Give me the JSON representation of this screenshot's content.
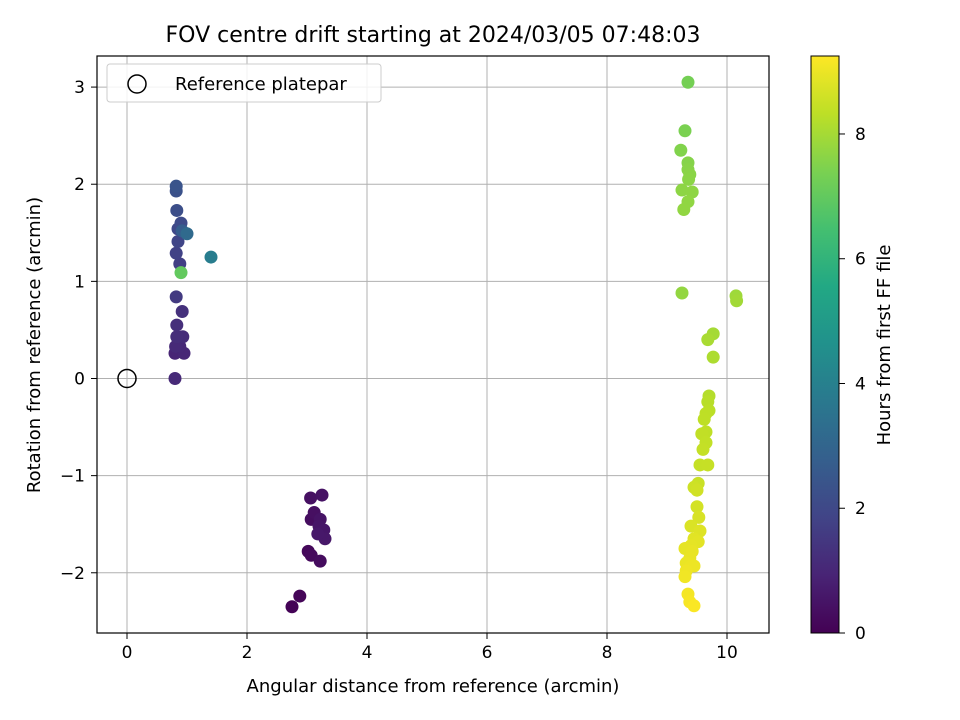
{
  "chart_data": {
    "type": "scatter",
    "title": "FOV centre drift starting at 2024/03/05 07:48:03",
    "xlabel": "Angular distance from reference (arcmin)",
    "ylabel": "Rotation from reference (arcmin)",
    "xlim": [
      -0.5,
      10.7
    ],
    "ylim": [
      -2.62,
      3.32
    ],
    "xticks": [
      0,
      2,
      4,
      6,
      8,
      10
    ],
    "yticks": [
      -2,
      -1,
      0,
      1,
      2,
      3
    ],
    "x_tick_labels": [
      "0",
      "2",
      "4",
      "6",
      "8",
      "10"
    ],
    "y_tick_labels": [
      "−2",
      "−1",
      "0",
      "1",
      "2",
      "3"
    ],
    "grid": true,
    "legend": {
      "position": "top-left",
      "entries": [
        "Reference platepar"
      ]
    },
    "reference_point": {
      "x": 0,
      "y": 0,
      "label": "Reference platepar"
    },
    "colorbar": {
      "label": "Hours from first FF file",
      "range": [
        0,
        9.25
      ],
      "ticks": [
        0,
        2,
        4,
        6,
        8
      ],
      "tick_labels": [
        "0",
        "2",
        "4",
        "6",
        "8"
      ],
      "colormap": "viridis"
    },
    "points": [
      {
        "x": 2.75,
        "y": -2.35,
        "h": 0.05
      },
      {
        "x": 2.88,
        "y": -2.24,
        "h": 0.12
      },
      {
        "x": 3.02,
        "y": -1.78,
        "h": 0.18
      },
      {
        "x": 3.07,
        "y": -1.82,
        "h": 0.22
      },
      {
        "x": 3.22,
        "y": -1.88,
        "h": 0.28
      },
      {
        "x": 3.07,
        "y": -1.45,
        "h": 0.32
      },
      {
        "x": 3.12,
        "y": -1.38,
        "h": 0.36
      },
      {
        "x": 3.06,
        "y": -1.23,
        "h": 0.4
      },
      {
        "x": 3.25,
        "y": -1.2,
        "h": 0.44
      },
      {
        "x": 3.22,
        "y": -1.45,
        "h": 0.48
      },
      {
        "x": 3.2,
        "y": -1.52,
        "h": 0.52
      },
      {
        "x": 3.28,
        "y": -1.56,
        "h": 0.56
      },
      {
        "x": 3.3,
        "y": -1.65,
        "h": 0.6
      },
      {
        "x": 3.18,
        "y": -1.6,
        "h": 0.62
      },
      {
        "x": 0.8,
        "y": 0.26,
        "h": 0.95
      },
      {
        "x": 0.95,
        "y": 0.26,
        "h": 1.0
      },
      {
        "x": 0.88,
        "y": 0.33,
        "h": 1.05
      },
      {
        "x": 0.81,
        "y": 0.33,
        "h": 1.1
      },
      {
        "x": 0.93,
        "y": 0.43,
        "h": 1.15
      },
      {
        "x": 0.83,
        "y": 0.43,
        "h": 1.2
      },
      {
        "x": 0.83,
        "y": 0.55,
        "h": 1.25
      },
      {
        "x": 0.92,
        "y": 0.69,
        "h": 1.3
      },
      {
        "x": 0.8,
        "y": 0.0,
        "h": 1.1
      },
      {
        "x": 0.82,
        "y": 0.84,
        "h": 1.55
      },
      {
        "x": 0.88,
        "y": 1.18,
        "h": 1.7
      },
      {
        "x": 0.82,
        "y": 1.29,
        "h": 1.8
      },
      {
        "x": 0.85,
        "y": 1.41,
        "h": 1.9
      },
      {
        "x": 0.85,
        "y": 1.54,
        "h": 2.0
      },
      {
        "x": 0.9,
        "y": 1.6,
        "h": 2.1
      },
      {
        "x": 0.83,
        "y": 1.73,
        "h": 2.2
      },
      {
        "x": 0.82,
        "y": 1.93,
        "h": 2.3
      },
      {
        "x": 0.82,
        "y": 1.98,
        "h": 2.4
      },
      {
        "x": 0.92,
        "y": 1.52,
        "h": 2.7
      },
      {
        "x": 1.0,
        "y": 1.49,
        "h": 3.2
      },
      {
        "x": 1.4,
        "y": 1.25,
        "h": 3.9
      },
      {
        "x": 0.9,
        "y": 1.09,
        "h": 7.0
      },
      {
        "x": 9.35,
        "y": 3.05,
        "h": 7.3
      },
      {
        "x": 9.3,
        "y": 2.55,
        "h": 7.4
      },
      {
        "x": 9.23,
        "y": 2.35,
        "h": 7.5
      },
      {
        "x": 9.35,
        "y": 2.22,
        "h": 7.55
      },
      {
        "x": 9.35,
        "y": 2.15,
        "h": 7.6
      },
      {
        "x": 9.38,
        "y": 2.1,
        "h": 7.62
      },
      {
        "x": 9.36,
        "y": 2.05,
        "h": 7.64
      },
      {
        "x": 9.25,
        "y": 1.94,
        "h": 7.66
      },
      {
        "x": 9.42,
        "y": 1.92,
        "h": 7.68
      },
      {
        "x": 9.35,
        "y": 1.82,
        "h": 7.7
      },
      {
        "x": 9.28,
        "y": 1.74,
        "h": 7.72
      },
      {
        "x": 9.25,
        "y": 0.88,
        "h": 7.75
      },
      {
        "x": 10.15,
        "y": 0.85,
        "h": 7.9
      },
      {
        "x": 10.16,
        "y": 0.8,
        "h": 7.95
      },
      {
        "x": 9.77,
        "y": 0.46,
        "h": 8.0
      },
      {
        "x": 9.68,
        "y": 0.4,
        "h": 8.05
      },
      {
        "x": 9.77,
        "y": 0.22,
        "h": 8.1
      },
      {
        "x": 9.7,
        "y": -0.18,
        "h": 8.2
      },
      {
        "x": 9.68,
        "y": -0.24,
        "h": 8.25
      },
      {
        "x": 9.7,
        "y": -0.33,
        "h": 8.3
      },
      {
        "x": 9.65,
        "y": -0.36,
        "h": 8.32
      },
      {
        "x": 9.62,
        "y": -0.42,
        "h": 8.34
      },
      {
        "x": 9.65,
        "y": -0.55,
        "h": 8.36
      },
      {
        "x": 9.58,
        "y": -0.57,
        "h": 8.38
      },
      {
        "x": 9.65,
        "y": -0.66,
        "h": 8.4
      },
      {
        "x": 9.6,
        "y": -0.73,
        "h": 8.42
      },
      {
        "x": 9.55,
        "y": -0.89,
        "h": 8.44
      },
      {
        "x": 9.68,
        "y": -0.89,
        "h": 8.46
      },
      {
        "x": 9.52,
        "y": -1.08,
        "h": 8.5
      },
      {
        "x": 9.45,
        "y": -1.12,
        "h": 8.55
      },
      {
        "x": 9.5,
        "y": -1.15,
        "h": 8.6
      },
      {
        "x": 9.5,
        "y": -1.32,
        "h": 8.65
      },
      {
        "x": 9.53,
        "y": -1.43,
        "h": 8.7
      },
      {
        "x": 9.4,
        "y": -1.52,
        "h": 8.75
      },
      {
        "x": 9.55,
        "y": -1.57,
        "h": 8.8
      },
      {
        "x": 9.45,
        "y": -1.65,
        "h": 8.85
      },
      {
        "x": 9.52,
        "y": -1.68,
        "h": 8.88
      },
      {
        "x": 9.4,
        "y": -1.72,
        "h": 8.9
      },
      {
        "x": 9.3,
        "y": -1.75,
        "h": 8.92
      },
      {
        "x": 9.42,
        "y": -1.78,
        "h": 8.94
      },
      {
        "x": 9.38,
        "y": -1.85,
        "h": 8.96
      },
      {
        "x": 9.32,
        "y": -1.9,
        "h": 8.98
      },
      {
        "x": 9.4,
        "y": -1.93,
        "h": 9.0
      },
      {
        "x": 9.45,
        "y": -1.93,
        "h": 9.02
      },
      {
        "x": 9.32,
        "y": -1.98,
        "h": 9.05
      },
      {
        "x": 9.3,
        "y": -2.04,
        "h": 9.08
      },
      {
        "x": 9.35,
        "y": -2.22,
        "h": 9.12
      },
      {
        "x": 9.38,
        "y": -2.3,
        "h": 9.16
      },
      {
        "x": 9.45,
        "y": -2.34,
        "h": 9.2
      }
    ]
  }
}
